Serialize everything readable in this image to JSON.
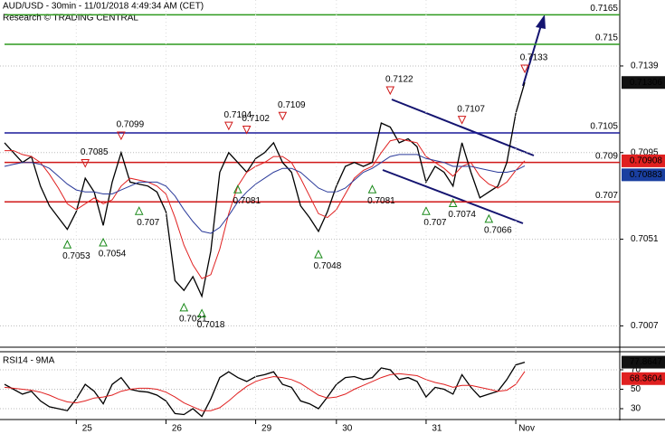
{
  "chart_data": [
    {
      "type": "line",
      "title": "AUD/USD - 30min - 11/01/2018 4:49:34 AM (CET)",
      "subtitle": "Research © TRADING CENTRAL",
      "ylim": [
        0.6998,
        0.71725
      ],
      "yticks": [
        0.7139,
        0.7095,
        0.7051,
        0.7007
      ],
      "grid": true,
      "series": [
        {
          "color": "#000000",
          "values": [
            0.71,
            0.7095,
            0.709,
            0.7093,
            0.7078,
            0.7068,
            0.7062,
            0.7056,
            0.7065,
            0.7082,
            0.7075,
            0.7058,
            0.708,
            0.7095,
            0.708,
            0.7079,
            0.7078,
            0.7075,
            0.7065,
            0.703,
            0.7025,
            0.7032,
            0.7022,
            0.7045,
            0.7085,
            0.7095,
            0.709,
            0.7085,
            0.7092,
            0.7095,
            0.71,
            0.709,
            0.7085,
            0.7068,
            0.7062,
            0.7055,
            0.7065,
            0.7078,
            0.7088,
            0.709,
            0.7088,
            0.709,
            0.711,
            0.7108,
            0.71,
            0.7102,
            0.7098,
            0.708,
            0.7088,
            0.7085,
            0.7078,
            0.71,
            0.7085,
            0.7072,
            0.7075,
            0.7078,
            0.709,
            0.7115,
            0.71306
          ],
          "label_fill": "#111111"
        },
        {
          "color": "#e02020",
          "values": [
            0.7096,
            0.7096,
            0.7094,
            0.7093,
            0.709,
            0.7084,
            0.7077,
            0.7069,
            0.7066,
            0.7069,
            0.7072,
            0.7069,
            0.7071,
            0.7078,
            0.7082,
            0.7081,
            0.708,
            0.7078,
            0.7074,
            0.7062,
            0.7048,
            0.7038,
            0.7031,
            0.7033,
            0.7046,
            0.7064,
            0.7078,
            0.7085,
            0.7088,
            0.709,
            0.7093,
            0.7093,
            0.709,
            0.7082,
            0.7073,
            0.7064,
            0.7062,
            0.7066,
            0.7074,
            0.7082,
            0.7086,
            0.7088,
            0.7095,
            0.7101,
            0.7102,
            0.7101,
            0.71,
            0.7093,
            0.709,
            0.7087,
            0.7083,
            0.7088,
            0.709,
            0.7083,
            0.7079,
            0.7077,
            0.708,
            0.7086,
            0.70908
          ],
          "label_fill": "#e02020"
        },
        {
          "color": "#2a3a9a",
          "values": [
            0.7088,
            0.7089,
            0.709,
            0.709,
            0.7089,
            0.7087,
            0.7083,
            0.7079,
            0.7076,
            0.7075,
            0.7075,
            0.7074,
            0.7074,
            0.7076,
            0.7078,
            0.708,
            0.708,
            0.708,
            0.7078,
            0.7073,
            0.7066,
            0.706,
            0.7055,
            0.7054,
            0.7057,
            0.7063,
            0.707,
            0.7075,
            0.7079,
            0.7082,
            0.7085,
            0.7087,
            0.7087,
            0.7085,
            0.7081,
            0.7077,
            0.7075,
            0.7075,
            0.7077,
            0.7081,
            0.7085,
            0.7087,
            0.709,
            0.7093,
            0.7094,
            0.7094,
            0.7094,
            0.7092,
            0.7091,
            0.709,
            0.7088,
            0.7088,
            0.7088,
            0.7087,
            0.7086,
            0.7085,
            0.7085,
            0.7086,
            0.70883
          ],
          "label_fill": "#1a3fa0"
        }
      ],
      "levels": [
        {
          "value": 0.7165,
          "color": "#2e9a1e"
        },
        {
          "value": 0.715,
          "color": "#2e9a1e"
        },
        {
          "value": 0.7105,
          "color": "#1a1a9a"
        },
        {
          "value": 0.709,
          "color": "#d01818"
        },
        {
          "value": 0.707,
          "color": "#d01818"
        }
      ],
      "highs": [
        {
          "x": 9,
          "value": 0.7085
        },
        {
          "x": 13,
          "value": 0.7099
        },
        {
          "x": 25,
          "value": 0.7104
        },
        {
          "x": 27,
          "value": 0.7102
        },
        {
          "x": 31,
          "value": 0.7109
        },
        {
          "x": 43,
          "value": 0.7122
        },
        {
          "x": 51,
          "value": 0.7107
        },
        {
          "x": 58,
          "value": 0.7133
        }
      ],
      "lows": [
        {
          "x": 7,
          "value": 0.7053
        },
        {
          "x": 11,
          "value": 0.7054
        },
        {
          "x": 15,
          "value": 0.707
        },
        {
          "x": 20,
          "value": 0.7021
        },
        {
          "x": 22,
          "value": 0.7018
        },
        {
          "x": 26,
          "value": 0.7081
        },
        {
          "x": 35,
          "value": 0.7048
        },
        {
          "x": 41,
          "value": 0.7081
        },
        {
          "x": 47,
          "value": 0.707
        },
        {
          "x": 50,
          "value": 0.7074
        },
        {
          "x": 54,
          "value": 0.7066
        }
      ]
    },
    {
      "type": "line",
      "title": "RSI14 - 9MA",
      "ylim": [
        20.7,
        84.9
      ],
      "yticks": [
        30,
        50,
        70
      ],
      "grid": true,
      "categories": [
        null,
        null,
        null,
        null,
        null,
        null,
        null,
        null,
        "25",
        null,
        null,
        null,
        null,
        null,
        null,
        null,
        null,
        null,
        "26",
        null,
        null,
        null,
        null,
        null,
        null,
        null,
        null,
        null,
        "29",
        null,
        null,
        null,
        null,
        null,
        null,
        null,
        null,
        "30",
        null,
        null,
        null,
        null,
        null,
        null,
        null,
        null,
        null,
        "31",
        null,
        null,
        null,
        null,
        null,
        null,
        null,
        null,
        null,
        "Nov",
        null
      ],
      "series": [
        {
          "color": "#000000",
          "values": [
            55,
            50,
            45,
            48,
            38,
            32,
            30,
            28,
            40,
            55,
            48,
            35,
            55,
            62,
            50,
            48,
            47,
            44,
            38,
            25,
            24,
            30,
            22,
            40,
            62,
            68,
            62,
            58,
            63,
            65,
            68,
            55,
            52,
            38,
            35,
            30,
            42,
            55,
            62,
            63,
            60,
            62,
            72,
            70,
            60,
            62,
            58,
            42,
            52,
            50,
            45,
            65,
            52,
            42,
            45,
            48,
            60,
            75,
            77.8647
          ],
          "label_fill": "#111111"
        },
        {
          "color": "#e02020",
          "values": [
            52,
            51,
            50,
            49,
            47,
            44,
            40,
            37,
            36,
            38,
            41,
            42,
            44,
            48,
            50,
            51,
            51,
            50,
            47,
            42,
            36,
            32,
            28,
            28,
            31,
            38,
            46,
            53,
            58,
            61,
            63,
            62,
            60,
            56,
            50,
            44,
            41,
            42,
            45,
            50,
            54,
            58,
            62,
            65,
            66,
            65,
            64,
            60,
            57,
            55,
            52,
            54,
            54,
            52,
            50,
            48,
            49,
            55,
            68.3604
          ],
          "label_fill": "#e02020"
        }
      ]
    }
  ]
}
